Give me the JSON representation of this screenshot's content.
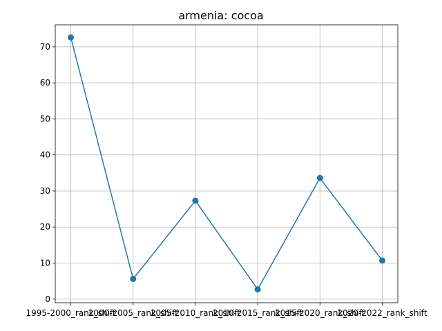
{
  "chart_data": {
    "type": "line",
    "title": "armenia: cocoa",
    "xlabel": "",
    "ylabel": "",
    "categories": [
      "1995-2000_rank_shift",
      "2000-2005_rank_shift",
      "2005-2010_rank_shift",
      "2010-2015_rank_shift",
      "2015-2020_rank_shift",
      "2020-2022_rank_shift"
    ],
    "series": [
      {
        "values": [
          72.6,
          5.6,
          27.3,
          2.7,
          33.6,
          10.7
        ]
      }
    ],
    "ylim": [
      -1.0,
      76.1
    ],
    "yticks": [
      0,
      10,
      20,
      30,
      40,
      50,
      60,
      70
    ],
    "grid": true,
    "line_color": "#1f77b4"
  }
}
